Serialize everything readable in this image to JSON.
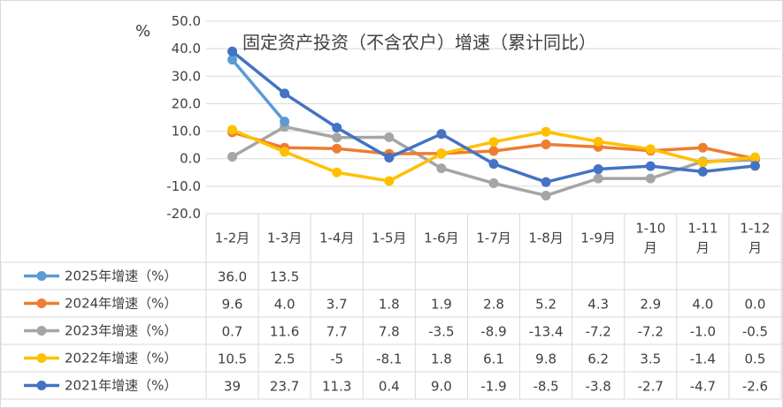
{
  "chart_data": {
    "type": "line",
    "title": "固定资产投资（不含农户）增速（累计同比）",
    "ylabel": "%",
    "ylim": [
      -20,
      50
    ],
    "yticks": [
      "50.0",
      "40.0",
      "30.0",
      "20.0",
      "10.0",
      "0.0",
      "-10.0",
      "-20.0"
    ],
    "categories": [
      [
        "1-2月"
      ],
      [
        "1-3月"
      ],
      [
        "1-4月"
      ],
      [
        "1-5月"
      ],
      [
        "1-6月"
      ],
      [
        "1-7月"
      ],
      [
        "1-8月"
      ],
      [
        "1-9月"
      ],
      [
        "1-10",
        "月"
      ],
      [
        "1-11",
        "月"
      ],
      [
        "1-12",
        "月"
      ]
    ],
    "grid": true,
    "legend": "data-table",
    "series": [
      {
        "name": "2025年增速（%）",
        "color": "#5B9BD5",
        "values": [
          36.0,
          13.5,
          null,
          null,
          null,
          null,
          null,
          null,
          null,
          null,
          null
        ],
        "labels": [
          "36.0",
          "13.5",
          "",
          "",
          "",
          "",
          "",
          "",
          "",
          "",
          ""
        ]
      },
      {
        "name": "2024年增速（%）",
        "color": "#ED7D31",
        "values": [
          9.6,
          4.0,
          3.7,
          1.8,
          1.9,
          2.8,
          5.2,
          4.3,
          2.9,
          4.0,
          0.0
        ],
        "labels": [
          "9.6",
          "4.0",
          "3.7",
          "1.8",
          "1.9",
          "2.8",
          "5.2",
          "4.3",
          "2.9",
          "4.0",
          "0.0"
        ]
      },
      {
        "name": "2023年增速（%）",
        "color": "#A5A5A5",
        "values": [
          0.7,
          11.6,
          7.7,
          7.8,
          -3.5,
          -8.9,
          -13.4,
          -7.2,
          -7.2,
          -1.0,
          -0.5
        ],
        "labels": [
          "0.7",
          "11.6",
          "7.7",
          "7.8",
          "-3.5",
          "-8.9",
          "-13.4",
          "-7.2",
          "-7.2",
          "-1.0",
          "-0.5"
        ]
      },
      {
        "name": "2022年增速（%）",
        "color": "#FFC000",
        "values": [
          10.5,
          2.5,
          -5,
          -8.1,
          1.8,
          6.1,
          9.8,
          6.2,
          3.5,
          -1.4,
          0.5
        ],
        "labels": [
          "10.5",
          "2.5",
          "-5",
          "-8.1",
          "1.8",
          "6.1",
          "9.8",
          "6.2",
          "3.5",
          "-1.4",
          "0.5"
        ]
      },
      {
        "name": "2021年增速（%）",
        "color": "#4472C4",
        "values": [
          39,
          23.7,
          11.3,
          0.4,
          9.0,
          -1.9,
          -8.5,
          -3.8,
          -2.7,
          -4.7,
          -2.6
        ],
        "labels": [
          "39",
          "23.7",
          "11.3",
          "0.4",
          "9.0",
          "-1.9",
          "-8.5",
          "-3.8",
          "-2.7",
          "-4.7",
          "-2.6"
        ]
      }
    ],
    "draw_order": [
      2,
      1,
      3,
      0,
      4
    ]
  }
}
